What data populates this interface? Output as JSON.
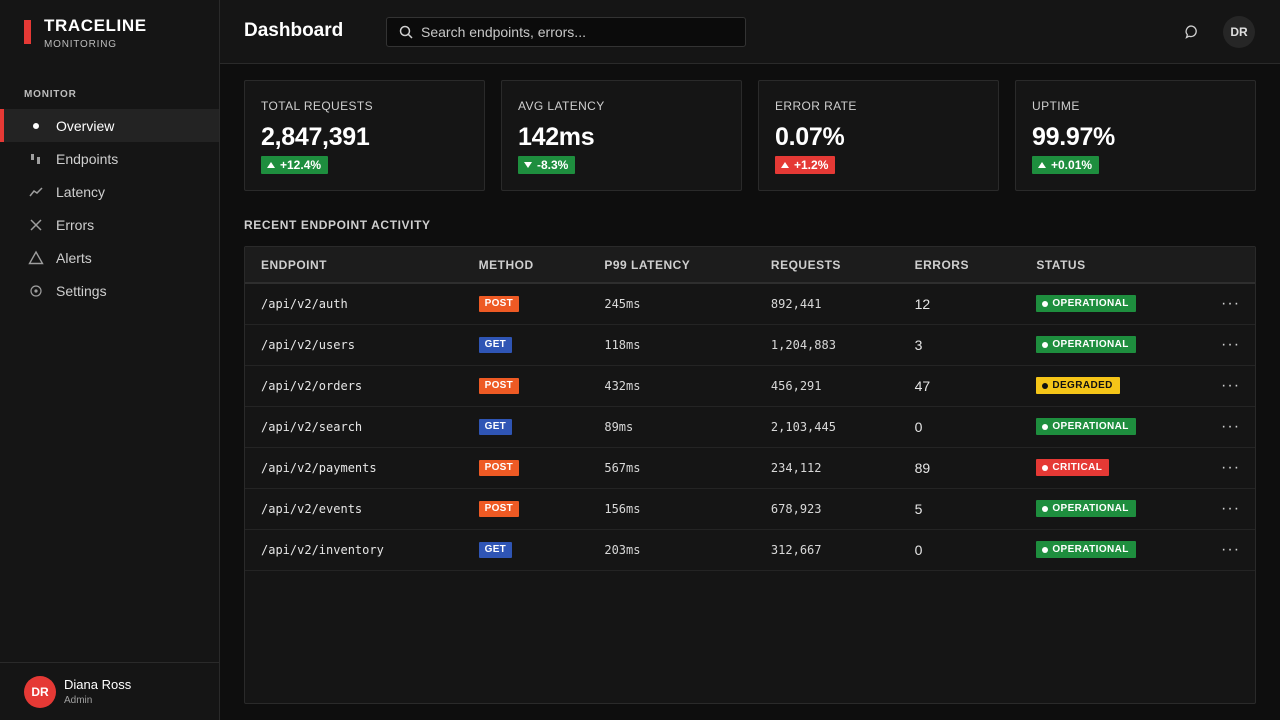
{
  "brand": {
    "name": "TRACELINE",
    "subtitle": "MONITORING",
    "accent": "#e53935"
  },
  "sidebar": {
    "section": "MONITOR",
    "items": [
      {
        "label": "Overview",
        "icon": "dot-icon",
        "active": true
      },
      {
        "label": "Endpoints",
        "icon": "endpoints-icon",
        "active": false
      },
      {
        "label": "Latency",
        "icon": "line-chart-icon",
        "active": false
      },
      {
        "label": "Errors",
        "icon": "x-icon",
        "active": false
      },
      {
        "label": "Alerts",
        "icon": "triangle-icon",
        "active": false
      },
      {
        "label": "Settings",
        "icon": "gear-icon",
        "active": false
      }
    ],
    "user": {
      "initials": "DR",
      "name": "Diana Ross",
      "role": "Admin"
    }
  },
  "header": {
    "title": "Dashboard",
    "search_placeholder": "Search endpoints, errors...",
    "avatar_initials": "DR"
  },
  "stats": [
    {
      "label": "TOTAL REQUESTS",
      "value": "2,847,391",
      "delta": "+12.4%",
      "direction": "up",
      "color": "#1e8e3e"
    },
    {
      "label": "AVG LATENCY",
      "value": "142ms",
      "delta": "-8.3%",
      "direction": "down",
      "color": "#1e8e3e"
    },
    {
      "label": "ERROR RATE",
      "value": "0.07%",
      "delta": "+1.2%",
      "direction": "up",
      "color": "#e53935"
    },
    {
      "label": "UPTIME",
      "value": "99.97%",
      "delta": "+0.01%",
      "direction": "up",
      "color": "#1e8e3e"
    }
  ],
  "activity": {
    "title": "RECENT ENDPOINT ACTIVITY",
    "columns": [
      "ENDPOINT",
      "METHOD",
      "P99 LATENCY",
      "REQUESTS",
      "ERRORS",
      "STATUS"
    ],
    "rows": [
      {
        "endpoint": "/api/v2/auth",
        "method": "POST",
        "latency": "245ms",
        "requests": "892,441",
        "errors": "12",
        "status": "OPERATIONAL"
      },
      {
        "endpoint": "/api/v2/users",
        "method": "GET",
        "latency": "118ms",
        "requests": "1,204,883",
        "errors": "3",
        "status": "OPERATIONAL"
      },
      {
        "endpoint": "/api/v2/orders",
        "method": "POST",
        "latency": "432ms",
        "requests": "456,291",
        "errors": "47",
        "status": "DEGRADED"
      },
      {
        "endpoint": "/api/v2/search",
        "method": "GET",
        "latency": "89ms",
        "requests": "2,103,445",
        "errors": "0",
        "status": "OPERATIONAL"
      },
      {
        "endpoint": "/api/v2/payments",
        "method": "POST",
        "latency": "567ms",
        "requests": "234,112",
        "errors": "89",
        "status": "CRITICAL"
      },
      {
        "endpoint": "/api/v2/events",
        "method": "POST",
        "latency": "156ms",
        "requests": "678,923",
        "errors": "5",
        "status": "OPERATIONAL"
      },
      {
        "endpoint": "/api/v2/inventory",
        "method": "GET",
        "latency": "203ms",
        "requests": "312,667",
        "errors": "0",
        "status": "OPERATIONAL"
      }
    ],
    "more_label": "···"
  },
  "colors": {
    "method_post": "#ee5a24",
    "method_get": "#2f55b5",
    "status_operational": "#1e8e3e",
    "status_degraded": "#f5c518",
    "status_critical": "#e53935"
  }
}
